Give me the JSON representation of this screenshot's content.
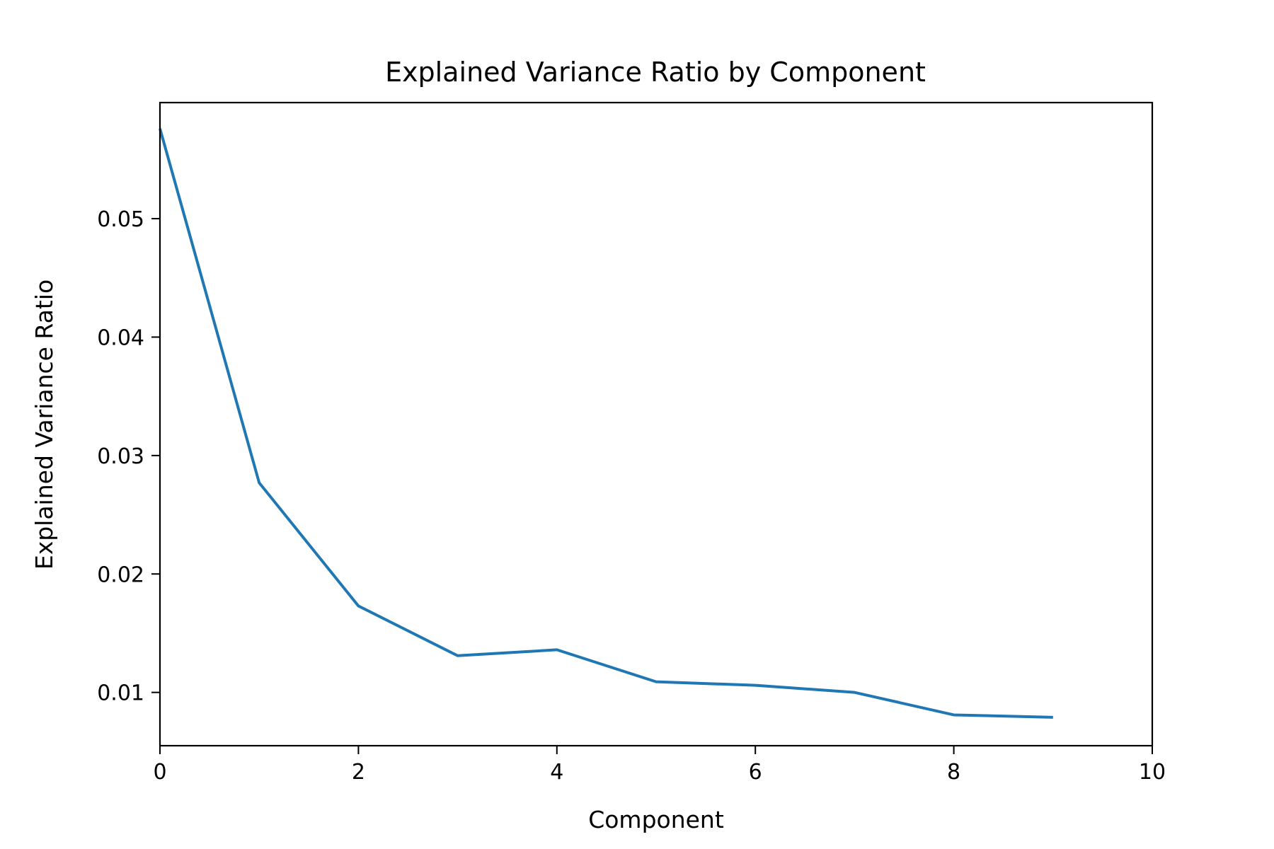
{
  "chart_data": {
    "type": "line",
    "title": "Explained Variance Ratio by Component",
    "xlabel": "Component",
    "ylabel": "Explained Variance Ratio",
    "xlim": [
      0,
      10
    ],
    "ylim": [
      0.0055,
      0.0598
    ],
    "xticks": [
      0,
      2,
      4,
      6,
      8,
      10
    ],
    "xtick_labels": [
      "0",
      "2",
      "4",
      "6",
      "8",
      "10"
    ],
    "yticks": [
      0.01,
      0.02,
      0.03,
      0.04,
      0.05
    ],
    "ytick_labels": [
      "0.01",
      "0.02",
      "0.03",
      "0.04",
      "0.05"
    ],
    "grid": false,
    "series": [
      {
        "color": "#1f77b4",
        "x": [
          0,
          1,
          2,
          3,
          4,
          5,
          6,
          7,
          8,
          9
        ],
        "y": [
          0.0576,
          0.0277,
          0.0173,
          0.0131,
          0.0136,
          0.0109,
          0.0106,
          0.01,
          0.0081,
          0.0079
        ]
      }
    ]
  }
}
